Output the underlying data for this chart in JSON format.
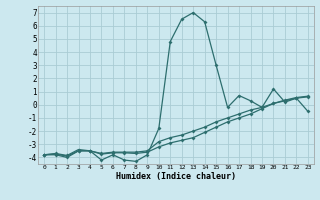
{
  "xlabel": "Humidex (Indice chaleur)",
  "bg_color": "#cce8ef",
  "grid_color": "#aaccd4",
  "line_color": "#2d6e6e",
  "x": [
    0,
    1,
    2,
    3,
    4,
    5,
    6,
    7,
    8,
    9,
    10,
    11,
    12,
    13,
    14,
    15,
    16,
    17,
    18,
    19,
    20,
    21,
    22,
    23
  ],
  "line1": [
    -3.8,
    -3.8,
    -4.0,
    -3.5,
    -3.5,
    -4.2,
    -3.8,
    -4.2,
    -4.3,
    -3.8,
    -1.8,
    4.8,
    6.5,
    7.0,
    6.3,
    3.0,
    -0.2,
    0.7,
    0.3,
    -0.2,
    1.2,
    0.2,
    0.5,
    -0.5
  ],
  "line2": [
    -3.8,
    -3.75,
    -3.9,
    -3.5,
    -3.5,
    -3.7,
    -3.6,
    -3.6,
    -3.6,
    -3.5,
    -2.8,
    -2.5,
    -2.3,
    -2.0,
    -1.7,
    -1.3,
    -1.0,
    -0.7,
    -0.4,
    -0.2,
    0.1,
    0.3,
    0.5,
    0.6
  ],
  "line3": [
    -3.8,
    -3.7,
    -3.85,
    -3.4,
    -3.5,
    -3.75,
    -3.65,
    -3.65,
    -3.7,
    -3.6,
    -3.2,
    -2.9,
    -2.7,
    -2.5,
    -2.1,
    -1.7,
    -1.3,
    -1.0,
    -0.7,
    -0.3,
    0.1,
    0.35,
    0.55,
    0.65
  ],
  "ylim": [
    -4.5,
    7.5
  ],
  "xlim": [
    -0.5,
    23.5
  ],
  "yticks": [
    -4,
    -3,
    -2,
    -1,
    0,
    1,
    2,
    3,
    4,
    5,
    6,
    7
  ],
  "xticks": [
    0,
    1,
    2,
    3,
    4,
    5,
    6,
    7,
    8,
    9,
    10,
    11,
    12,
    13,
    14,
    15,
    16,
    17,
    18,
    19,
    20,
    21,
    22,
    23
  ],
  "figsize": [
    3.2,
    2.0
  ],
  "dpi": 100
}
